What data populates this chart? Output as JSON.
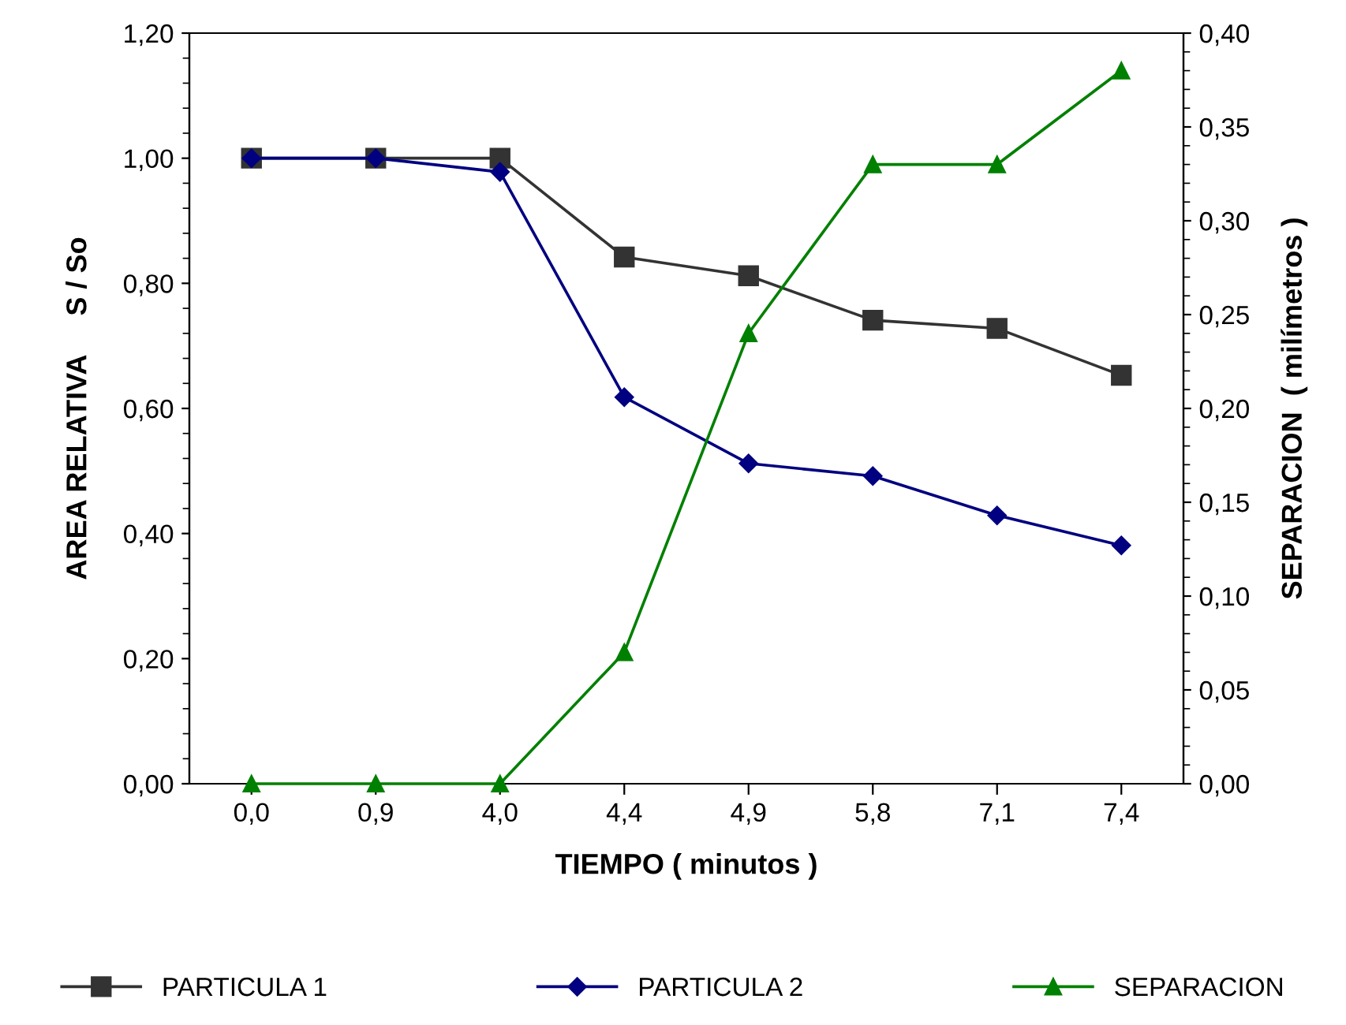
{
  "chart_data": {
    "type": "line",
    "xlabel": "TIEMPO ( minutos )",
    "ylabel": "AREA RELATIVA     S / So",
    "y2label": "SEPARACION  ( milímetros )",
    "categories": [
      "0,0",
      "0,9",
      "4,0",
      "4,4",
      "4,9",
      "5,8",
      "7,1",
      "7,4"
    ],
    "series": [
      {
        "name": "PARTICULA 1",
        "color": "#333333",
        "marker": "square",
        "values": [
          1.0,
          1.0,
          1.0,
          0.842,
          0.812,
          0.741,
          0.728,
          0.653
        ]
      },
      {
        "name": "PARTICULA 2",
        "color": "#000080",
        "marker": "diamond",
        "values": [
          1.0,
          1.0,
          0.978,
          0.618,
          0.512,
          0.492,
          0.429,
          0.381
        ]
      },
      {
        "name": "SEPARACION",
        "color": "#008000",
        "marker": "triangle",
        "axis": "y2",
        "values": [
          0,
          0,
          0,
          0.07,
          0.24,
          0.33,
          0.33,
          0.38
        ]
      }
    ],
    "ylim": [
      0,
      1.2
    ],
    "yticks": [
      {
        "value": 0,
        "label": "0,00"
      },
      {
        "value": 0.2,
        "label": "0,20"
      },
      {
        "value": 0.4,
        "label": "0,40"
      },
      {
        "value": 0.6,
        "label": "0,60"
      },
      {
        "value": 0.8,
        "label": "0,80"
      },
      {
        "value": 1.0,
        "label": "1,00"
      },
      {
        "value": 1.2,
        "label": "1,20"
      }
    ],
    "y2lim": [
      0,
      0.4
    ],
    "y2ticks": [
      {
        "value": 0,
        "label": "0,00"
      },
      {
        "value": 0.05,
        "label": "0,05"
      },
      {
        "value": 0.1,
        "label": "0,10"
      },
      {
        "value": 0.15,
        "label": "0,15"
      },
      {
        "value": 0.2,
        "label": "0,20"
      },
      {
        "value": 0.25,
        "label": "0,25"
      },
      {
        "value": 0.3,
        "label": "0,30"
      },
      {
        "value": 0.35,
        "label": "0,35"
      },
      {
        "value": 0.4,
        "label": "0,40"
      }
    ],
    "grid": false,
    "legend": "bottom",
    "line_style": "solid"
  }
}
